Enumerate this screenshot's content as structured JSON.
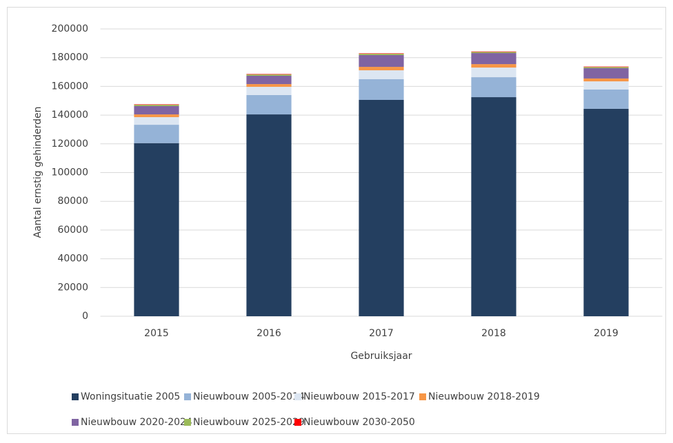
{
  "chart_data": {
    "type": "stacked_bar",
    "x_label": "Gebruiksjaar",
    "y_label": "Aantal ernstig gehinderden",
    "categories": [
      "2015",
      "2016",
      "2017",
      "2018",
      "2019"
    ],
    "series": [
      {
        "name": "Woningsituatie 2005",
        "color": "#243f60",
        "values": [
          120500,
          140500,
          150600,
          152500,
          144400
        ]
      },
      {
        "name": "Nieuwbouw 2005-2014",
        "color": "#95b3d7",
        "values": [
          12800,
          13500,
          14400,
          13900,
          13400
        ]
      },
      {
        "name": "Nieuwbouw 2015-2017",
        "color": "#dce6f2",
        "values": [
          5300,
          5700,
          6200,
          6700,
          5700
        ]
      },
      {
        "name": "Nieuwbouw 2018-2019",
        "color": "#f79646",
        "values": [
          1900,
          1900,
          2400,
          2400,
          2000
        ]
      },
      {
        "name": "Nieuwbouw 2020-2024",
        "color": "#8064a2",
        "values": [
          5800,
          5800,
          8200,
          7700,
          7200
        ]
      },
      {
        "name": "Nieuwbouw 2025-2029",
        "color": "#9bbb59",
        "values": [
          900,
          900,
          900,
          800,
          800
        ]
      },
      {
        "name": "Nieuwbouw 2030-2050",
        "color": "#ff0000",
        "values": [
          300,
          300,
          300,
          300,
          300
        ]
      }
    ],
    "ylim": [
      0,
      200000
    ],
    "yticks": [
      0,
      20000,
      40000,
      60000,
      80000,
      100000,
      120000,
      140000,
      160000,
      180000,
      200000
    ],
    "grid": true,
    "legend": "bottom"
  }
}
